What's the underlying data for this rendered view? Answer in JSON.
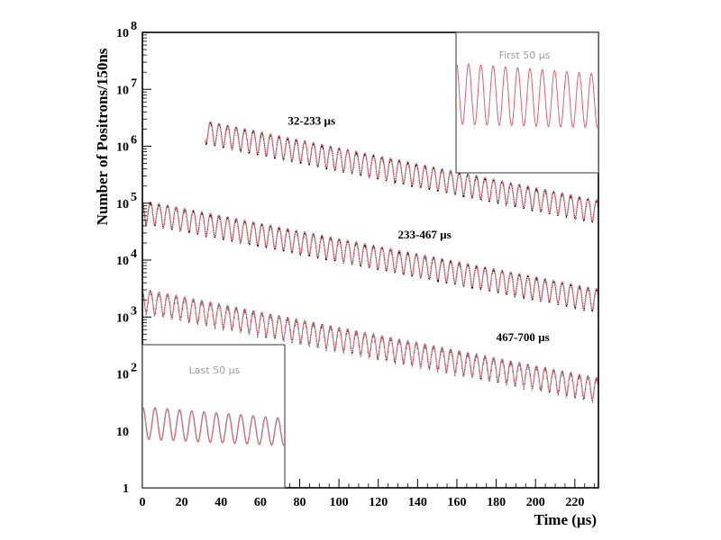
{
  "chart_data": {
    "type": "line",
    "ylabel": "Number of Positrons/150ns",
    "xlabel": "Time (µs)",
    "yscale": "log",
    "xlim": [
      0,
      232
    ],
    "ylim": [
      1,
      100000000
    ],
    "x_ticks": [
      "0",
      "20",
      "40",
      "60",
      "80",
      "100",
      "120",
      "140",
      "160",
      "180",
      "200",
      "220"
    ],
    "y_ticks": [
      {
        "base": "1",
        "exp": ""
      },
      {
        "base": "10",
        "exp": ""
      },
      {
        "base": "10",
        "exp": "2"
      },
      {
        "base": "10",
        "exp": "3"
      },
      {
        "base": "10",
        "exp": "4"
      },
      {
        "base": "10",
        "exp": "5"
      },
      {
        "base": "10",
        "exp": "6"
      },
      {
        "base": "10",
        "exp": "7"
      },
      {
        "base": "10",
        "exp": "8"
      }
    ],
    "series": [
      {
        "name": "32-233 µs",
        "x_start": 32,
        "x_end": 232,
        "y_start": 2000000,
        "y_end": 80000,
        "label_x": 74,
        "label_y": 2400000
      },
      {
        "name": "233-467 µs",
        "x_start": 0,
        "x_end": 232,
        "y_start": 80000,
        "y_end": 2200,
        "label_x": 130,
        "label_y": 24000
      },
      {
        "name": "467-700 µs",
        "x_start": 0,
        "x_end": 232,
        "y_start": 2200,
        "y_end": 60,
        "label_x": 180,
        "label_y": 380
      }
    ],
    "insets": [
      {
        "title": "First 50 µs",
        "position": "top-right"
      },
      {
        "title": "Last 50 µs",
        "position": "bottom-left"
      }
    ],
    "colors": {
      "fit": "#e0606a",
      "data": "#000000",
      "noisy_data": "#555555",
      "inset_frame": "#555555"
    }
  }
}
